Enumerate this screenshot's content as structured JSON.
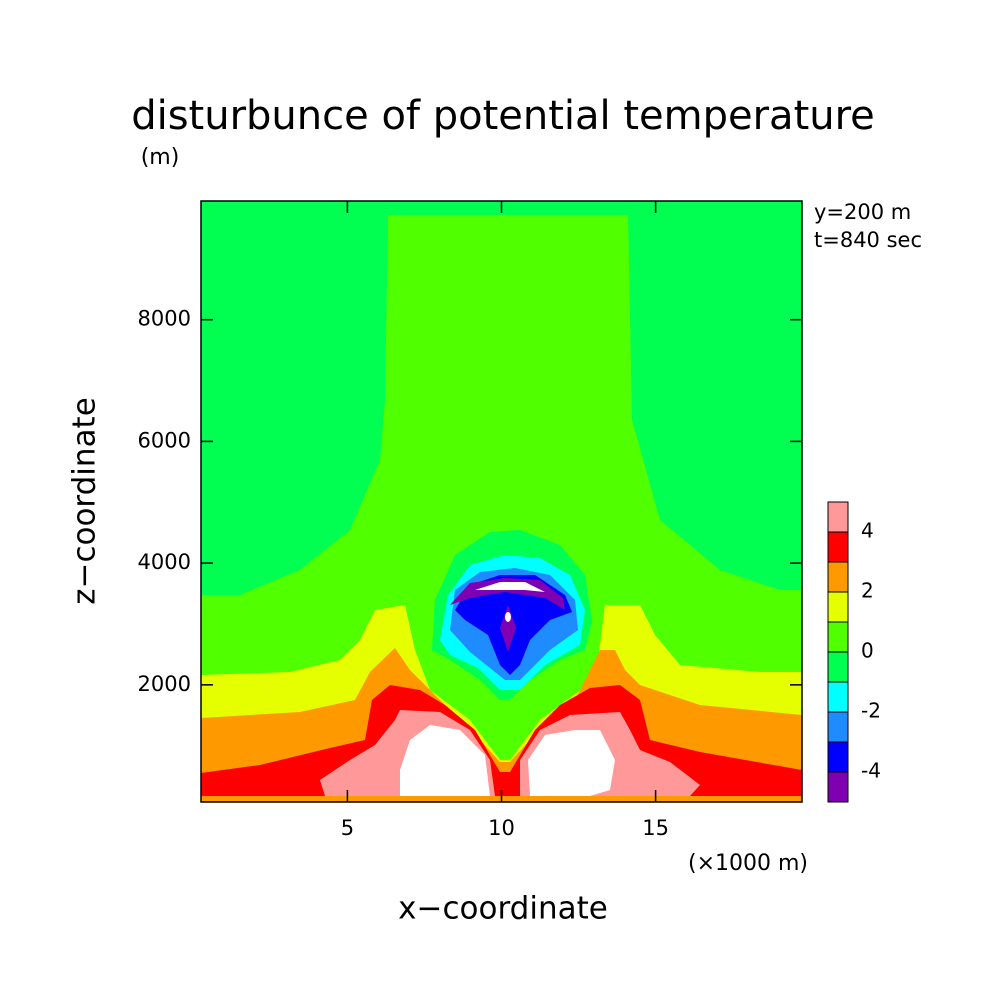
{
  "chart_data": {
    "type": "contour",
    "title": "disturbunce of potential temperature",
    "y_unit": "(m)",
    "x_unit": "(×1000 m)",
    "x_label": "x−coordinate",
    "y_label": "z−coordinate",
    "annotations": [
      "y=200 m",
      "t=840 sec"
    ],
    "xlim": [
      0.25,
      19.75
    ],
    "ylim": [
      75,
      9950
    ],
    "xticks": [
      5,
      10,
      15
    ],
    "yticks": [
      2000,
      4000,
      6000,
      8000
    ],
    "levels": [
      -5,
      -4,
      -3,
      -2,
      -1,
      0,
      1,
      2,
      3,
      4,
      5
    ],
    "level_colors": [
      "#7f00b2",
      "#0000ff",
      "#1e8cff",
      "#00ffff",
      "#00ff50",
      "#50ff00",
      "#e6ff00",
      "#ff9900",
      "#ff0000",
      "#ff9999"
    ],
    "above_color": "#ffffff",
    "colorbar_ticks": [
      -4,
      -2,
      0,
      2,
      4
    ]
  }
}
